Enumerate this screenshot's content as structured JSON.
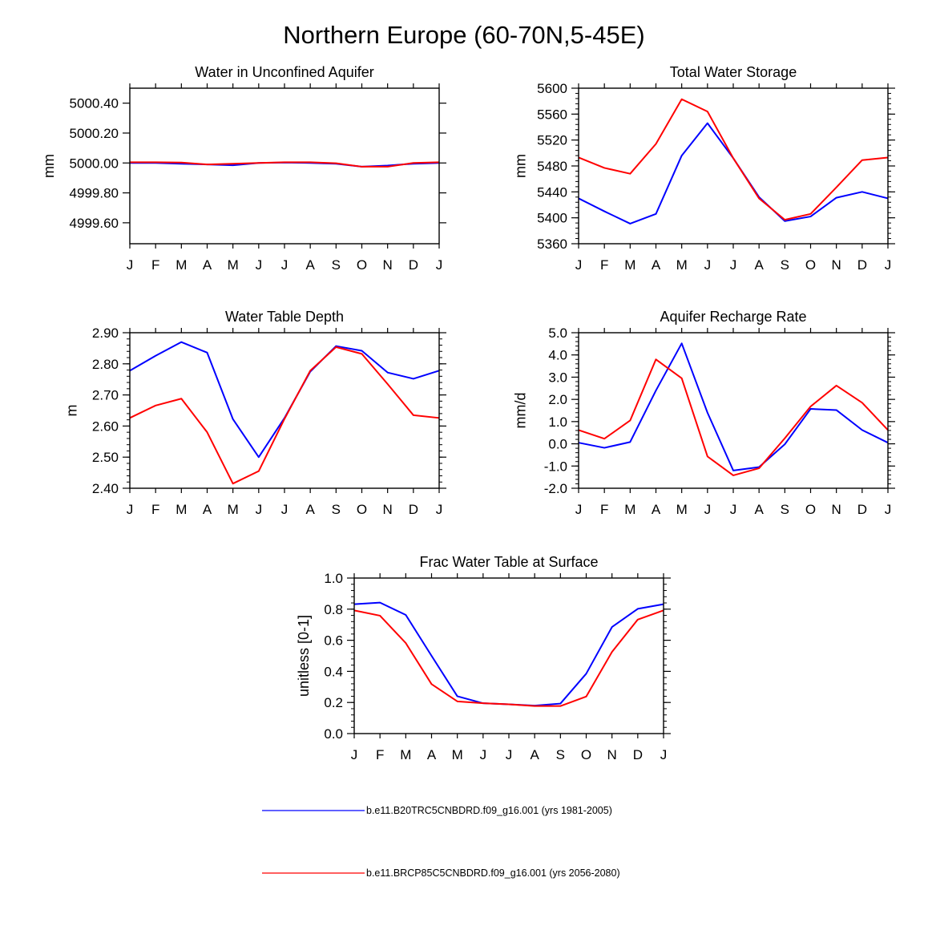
{
  "figure_title": "Northern Europe (60-70N,5-45E)",
  "colors": {
    "series1": "#0000ff",
    "series2": "#ff0000",
    "axis": "#000000"
  },
  "legend": [
    {
      "label": "b.e11.B20TRC5CNBDRD.f09_g16.001 (yrs 1981-2005)",
      "color": "#0000ff"
    },
    {
      "label": "b.e11.BRCP85C5CNBDRD.f09_g16.001 (yrs 2056-2080)",
      "color": "#ff0000"
    }
  ],
  "chart_data": [
    {
      "type": "line",
      "title": "Water in Unconfined Aquifer",
      "xlabel": "",
      "ylabel": "mm",
      "categories": [
        "J",
        "F",
        "M",
        "A",
        "M",
        "J",
        "J",
        "A",
        "S",
        "O",
        "N",
        "D",
        "J"
      ],
      "ylim": [
        4999.46,
        5000.5
      ],
      "yticks": [
        4999.6,
        4999.8,
        5000.0,
        5000.2,
        5000.4
      ],
      "ytick_labels": [
        "4999.60",
        "4999.80",
        "5000.00",
        "5000.20",
        "5000.40"
      ],
      "series": [
        {
          "values": [
            5000.0,
            5000.0,
            4999.995,
            4999.99,
            4999.985,
            5000.0,
            5000.003,
            5000.0,
            4999.995,
            4999.975,
            4999.983,
            4999.995,
            5000.0
          ]
        },
        {
          "values": [
            5000.005,
            5000.005,
            5000.003,
            4999.99,
            4999.995,
            5000.0,
            5000.005,
            5000.005,
            4999.998,
            4999.975,
            4999.975,
            5000.0,
            5000.005
          ]
        }
      ]
    },
    {
      "type": "line",
      "title": "Total Water Storage",
      "xlabel": "",
      "ylabel": "mm",
      "categories": [
        "J",
        "F",
        "M",
        "A",
        "M",
        "J",
        "J",
        "A",
        "S",
        "O",
        "N",
        "D",
        "J"
      ],
      "ylim": [
        5360,
        5600
      ],
      "yticks": [
        5360,
        5400,
        5440,
        5480,
        5520,
        5560,
        5600
      ],
      "ytick_labels": [
        "5360",
        "5400",
        "5440",
        "5480",
        "5520",
        "5560",
        "5600"
      ],
      "series": [
        {
          "values": [
            5430,
            5410,
            5391,
            5406,
            5496,
            5546,
            5492,
            5432,
            5395,
            5402,
            5431,
            5440,
            5430
          ]
        },
        {
          "values": [
            5493,
            5477,
            5468,
            5514,
            5583,
            5564,
            5492,
            5430,
            5397,
            5406,
            5447,
            5489,
            5493
          ]
        }
      ]
    },
    {
      "type": "line",
      "title": "Water Table Depth",
      "xlabel": "",
      "ylabel": "m",
      "categories": [
        "J",
        "F",
        "M",
        "A",
        "M",
        "J",
        "J",
        "A",
        "S",
        "O",
        "N",
        "D",
        "J"
      ],
      "ylim": [
        2.4,
        2.9
      ],
      "yticks": [
        2.4,
        2.5,
        2.6,
        2.7,
        2.8,
        2.9
      ],
      "ytick_labels": [
        "2.40",
        "2.50",
        "2.60",
        "2.70",
        "2.80",
        "2.90"
      ],
      "series": [
        {
          "values": [
            2.778,
            2.826,
            2.87,
            2.836,
            2.622,
            2.5,
            2.626,
            2.775,
            2.857,
            2.842,
            2.772,
            2.752,
            2.778
          ]
        },
        {
          "values": [
            2.626,
            2.666,
            2.688,
            2.58,
            2.415,
            2.455,
            2.623,
            2.778,
            2.854,
            2.832,
            2.735,
            2.635,
            2.626
          ]
        }
      ]
    },
    {
      "type": "line",
      "title": "Aquifer Recharge Rate",
      "xlabel": "",
      "ylabel": "mm/d",
      "categories": [
        "J",
        "F",
        "M",
        "A",
        "M",
        "J",
        "J",
        "A",
        "S",
        "O",
        "N",
        "D",
        "J"
      ],
      "ylim": [
        -2.0,
        5.0
      ],
      "yticks": [
        -2,
        -1,
        0,
        1,
        2,
        3,
        4,
        5
      ],
      "ytick_labels": [
        "-2.0",
        "-1.0",
        "0.0",
        "1.0",
        "2.0",
        "3.0",
        "4.0",
        "5.0"
      ],
      "series": [
        {
          "values": [
            0.05,
            -0.18,
            0.08,
            2.4,
            4.52,
            1.4,
            -1.2,
            -1.05,
            -0.02,
            1.57,
            1.52,
            0.62,
            0.05
          ]
        },
        {
          "values": [
            0.62,
            0.23,
            1.05,
            3.8,
            2.95,
            -0.57,
            -1.42,
            -1.1,
            0.25,
            1.68,
            2.62,
            1.85,
            0.62
          ]
        }
      ]
    },
    {
      "type": "line",
      "title": "Frac Water Table at Surface",
      "xlabel": "",
      "ylabel": "unitless [0-1]",
      "categories": [
        "J",
        "F",
        "M",
        "A",
        "M",
        "J",
        "J",
        "A",
        "S",
        "O",
        "N",
        "D",
        "J"
      ],
      "ylim": [
        0.0,
        1.0
      ],
      "yticks": [
        0.0,
        0.2,
        0.4,
        0.6,
        0.8,
        1.0
      ],
      "ytick_labels": [
        "0.0",
        "0.2",
        "0.4",
        "0.6",
        "0.8",
        "1.0"
      ],
      "series": [
        {
          "values": [
            0.832,
            0.842,
            0.763,
            0.5,
            0.24,
            0.195,
            0.188,
            0.18,
            0.193,
            0.385,
            0.685,
            0.802,
            0.832
          ]
        },
        {
          "values": [
            0.792,
            0.758,
            0.582,
            0.318,
            0.207,
            0.195,
            0.188,
            0.177,
            0.177,
            0.238,
            0.525,
            0.733,
            0.792
          ]
        }
      ]
    }
  ]
}
